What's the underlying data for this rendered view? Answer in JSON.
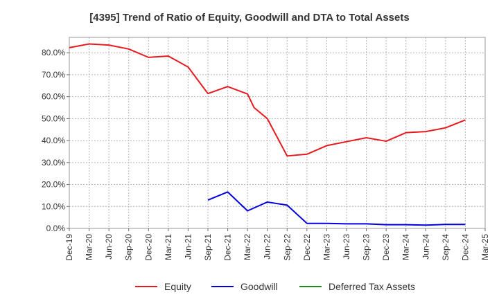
{
  "chart_data": {
    "type": "line",
    "title": "[4395]  Trend of Ratio of Equity, Goodwill and DTA to Total Assets",
    "xlabel": "",
    "ylabel": "",
    "x": [
      "Dec-19",
      "Mar-20",
      "Jun-20",
      "Sep-20",
      "Dec-20",
      "Mar-21",
      "Jun-21",
      "Sep-21",
      "Dec-21",
      "Mar-22",
      "Jun-22",
      "Sep-22",
      "Dec-22",
      "Mar-23",
      "Jun-23",
      "Sep-23",
      "Dec-23",
      "Mar-24",
      "Jun-24",
      "Sep-24",
      "Dec-24",
      "Mar-25"
    ],
    "ylim": [
      0,
      87
    ],
    "yticks": [
      0,
      10,
      20,
      30,
      40,
      50,
      60,
      70,
      80
    ],
    "ytick_labels": [
      "0.0%",
      "10.0%",
      "20.0%",
      "30.0%",
      "40.0%",
      "50.0%",
      "60.0%",
      "70.0%",
      "80.0%"
    ],
    "grid": true,
    "legend_position": "bottom",
    "series": [
      {
        "name": "Equity",
        "color": "#e8191d",
        "points": [
          [
            "Dec-19",
            82.3
          ],
          [
            "Mar-20",
            84.0
          ],
          [
            "Jun-20",
            83.5
          ],
          [
            "Sep-20",
            81.7
          ],
          [
            "Dec-20",
            77.9
          ],
          [
            "Mar-21",
            78.5
          ],
          [
            "Jun-21",
            73.5
          ],
          [
            "Sep-21",
            61.4
          ],
          [
            "Dec-21",
            64.6
          ],
          [
            "Mar-22",
            61.2
          ],
          [
            "Apr-22",
            55.0
          ],
          [
            "Jun-22",
            50.0
          ],
          [
            "Sep-22",
            33.0
          ],
          [
            "Dec-22",
            33.8
          ],
          [
            "Mar-23",
            37.7
          ],
          [
            "Jun-23",
            39.5
          ],
          [
            "Sep-23",
            41.3
          ],
          [
            "Dec-23",
            39.7
          ],
          [
            "Mar-24",
            43.6
          ],
          [
            "Jun-24",
            44.1
          ],
          [
            "Sep-24",
            45.8
          ],
          [
            "Dec-24",
            49.4
          ]
        ]
      },
      {
        "name": "Goodwill",
        "color": "#0000e0",
        "points": [
          [
            "Sep-21",
            12.9
          ],
          [
            "Dec-21",
            16.6
          ],
          [
            "Mar-22",
            8.0
          ],
          [
            "Jun-22",
            12.0
          ],
          [
            "Sep-22",
            10.6
          ],
          [
            "Dec-22",
            2.3
          ],
          [
            "Mar-23",
            2.3
          ],
          [
            "Jun-23",
            2.1
          ],
          [
            "Sep-23",
            2.1
          ],
          [
            "Dec-23",
            1.7
          ],
          [
            "Mar-24",
            1.7
          ],
          [
            "Jun-24",
            1.5
          ],
          [
            "Sep-24",
            1.8
          ],
          [
            "Dec-24",
            1.8
          ]
        ]
      },
      {
        "name": "Deferred Tax Assets",
        "color": "#1a8c1a",
        "points": []
      }
    ]
  }
}
